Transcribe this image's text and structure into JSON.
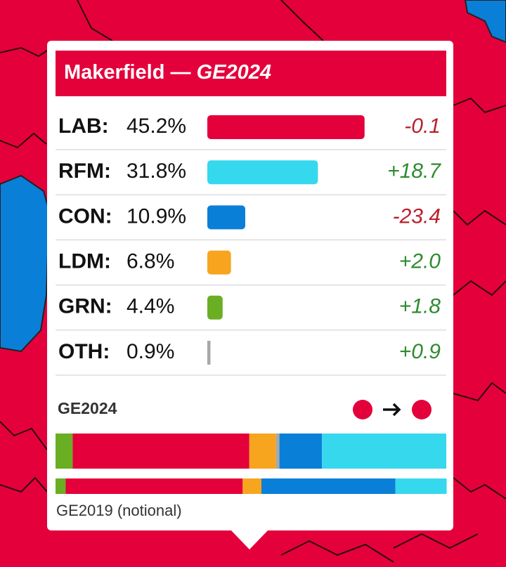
{
  "title": {
    "name": "Makerfield",
    "separator": " — ",
    "election": "GE2024"
  },
  "rows": [
    {
      "party": "LAB:",
      "share": 45.2,
      "share_label": "45.2%",
      "change": -0.1,
      "change_label": "-0.1",
      "color": "#e4003b"
    },
    {
      "party": "RFM:",
      "share": 31.8,
      "share_label": "31.8%",
      "change": 18.7,
      "change_label": "+18.7",
      "color": "#36d8ee"
    },
    {
      "party": "CON:",
      "share": 10.9,
      "share_label": "10.9%",
      "change": -23.4,
      "change_label": "-23.4",
      "color": "#0a7fd8"
    },
    {
      "party": "LDM:",
      "share": 6.8,
      "share_label": "6.8%",
      "change": 2.0,
      "change_label": "+2.0",
      "color": "#f7a51f"
    },
    {
      "party": "GRN:",
      "share": 4.4,
      "share_label": "4.4%",
      "change": 1.8,
      "change_label": "+1.8",
      "color": "#6aae24"
    },
    {
      "party": "OTH:",
      "share": 0.9,
      "share_label": "0.9%",
      "change": 0.9,
      "change_label": "+0.9",
      "color": "#a8a8a8"
    }
  ],
  "ge2024": {
    "label": "GE2024"
  },
  "ge2019": {
    "label": "GE2019 (notional)",
    "shares": [
      45.3,
      13.1,
      34.3,
      4.8,
      2.6,
      0
    ]
  }
}
